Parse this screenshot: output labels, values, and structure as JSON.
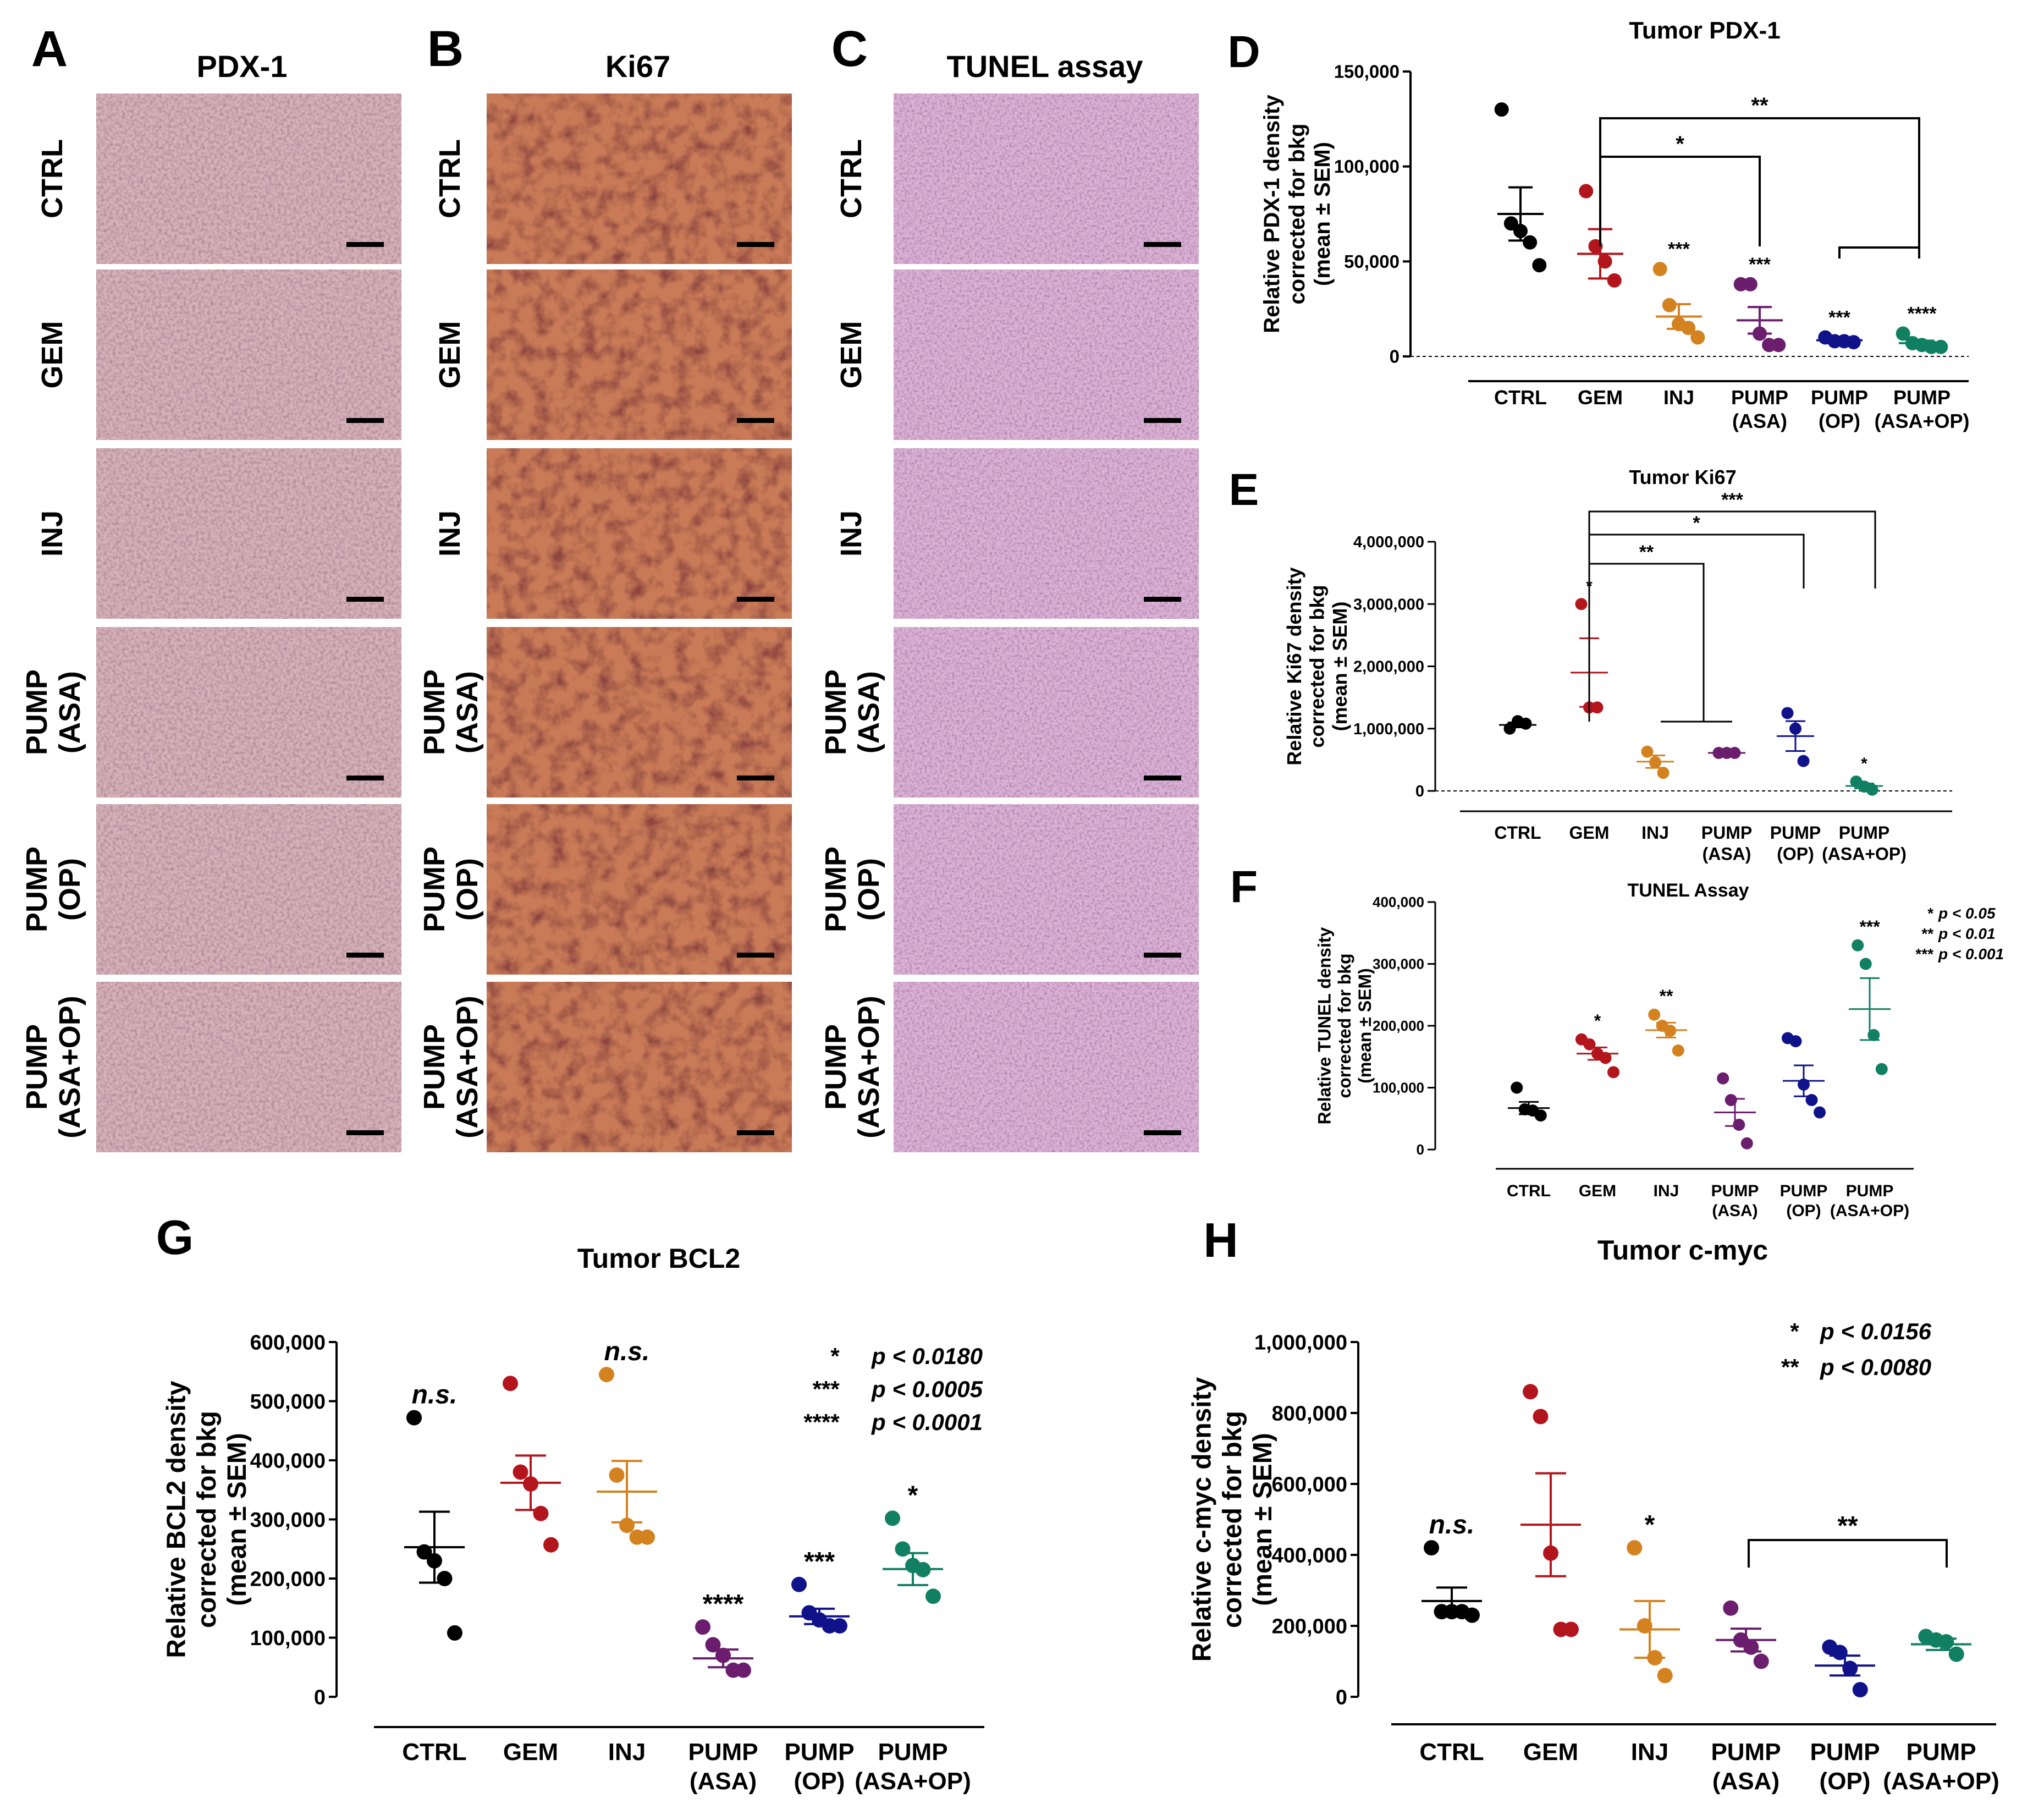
{
  "colors": {
    "CTRL": "#000000",
    "GEM": "#b3151d",
    "INJ": "#d4821f",
    "PUMP (ASA)": "#6b1d6e",
    "PUMP (OP)": "#10128a",
    "PUMP (ASA+OP)": "#118062",
    "tissue_pdx1": "#d7b3b8",
    "tissue_ki67": "#c97a56",
    "tissue_tunel": "#dbb3d6"
  },
  "micrographs": {
    "columns": [
      {
        "letter": "A",
        "title": "PDX-1"
      },
      {
        "letter": "B",
        "title": "Ki67"
      },
      {
        "letter": "C",
        "title": "TUNEL assay"
      }
    ],
    "rows": [
      {
        "line1": "CTRL",
        "line2": ""
      },
      {
        "line1": "GEM",
        "line2": ""
      },
      {
        "line1": "INJ",
        "line2": ""
      },
      {
        "line1": "PUMP",
        "line2": "(ASA)"
      },
      {
        "line1": "PUMP",
        "line2": "(OP)"
      },
      {
        "line1": "PUMP",
        "line2": "(ASA+OP)"
      }
    ]
  },
  "chart_data": [
    {
      "id": "D",
      "letter": "D",
      "type": "scatter",
      "title": "Tumor PDX-1",
      "ylabel": [
        "Relative PDX-1 density",
        "corrected for bkg",
        "(mean ± SEM)"
      ],
      "ylim": [
        0,
        150000
      ],
      "yticks": [
        0,
        50000,
        100000,
        150000
      ],
      "ytick_labels": [
        "0",
        "50,000",
        "100,000",
        "150,000"
      ],
      "categories": [
        [
          "CTRL"
        ],
        [
          "GEM"
        ],
        [
          "INJ"
        ],
        [
          "PUMP",
          "(ASA)"
        ],
        [
          "PUMP",
          "(OP)"
        ],
        [
          "PUMP",
          "(ASA+OP)"
        ]
      ],
      "series": [
        {
          "name": "CTRL",
          "points": [
            130000,
            70000,
            66000,
            60000,
            48000
          ],
          "mean": 75000,
          "sem": 14000
        },
        {
          "name": "GEM",
          "points": [
            87000,
            58000,
            50000,
            40000
          ],
          "mean": 54000,
          "sem": 13000
        },
        {
          "name": "INJ",
          "points": [
            46000,
            27000,
            17000,
            15000,
            10000
          ],
          "mean": 21000,
          "sem": 6500
        },
        {
          "name": "PUMP (ASA)",
          "points": [
            38000,
            38000,
            12000,
            6000,
            6000
          ],
          "mean": 19000,
          "sem": 7000
        },
        {
          "name": "PUMP (OP)",
          "points": [
            10000,
            8000,
            8000,
            7500
          ],
          "mean": 8500,
          "sem": 1000
        },
        {
          "name": "PUMP (ASA+OP)",
          "points": [
            12000,
            7000,
            6000,
            5000,
            5000
          ],
          "mean": 7000,
          "sem": 1300
        }
      ],
      "point_stars": [
        "",
        "",
        "***",
        "***",
        "***",
        "****"
      ],
      "brackets": [
        {
          "x1": 1,
          "x2": 5,
          "label": "**"
        },
        {
          "x1": 1,
          "x2": 3,
          "label": "*"
        },
        {
          "x1": 4,
          "x2": 5,
          "label": ""
        }
      ],
      "legend": []
    },
    {
      "id": "E",
      "letter": "E",
      "type": "scatter",
      "title": "Tumor Ki67",
      "ylabel": [
        "Relative Ki67 density",
        "corrected for bkg",
        "(mean ± SEM)"
      ],
      "ylim": [
        0,
        4000000
      ],
      "yticks": [
        0,
        1000000,
        2000000,
        3000000,
        4000000
      ],
      "ytick_labels": [
        "0",
        "1,000,000",
        "2,000,000",
        "3,000,000",
        "4,000,000"
      ],
      "categories": [
        [
          "CTRL"
        ],
        [
          "GEM"
        ],
        [
          "INJ"
        ],
        [
          "PUMP",
          "(ASA)"
        ],
        [
          "PUMP",
          "(OP)"
        ],
        [
          "PUMP",
          "(ASA+OP)"
        ]
      ],
      "series": [
        {
          "name": "CTRL",
          "points": [
            1000000,
            1120000,
            1080000
          ],
          "mean": 1060000,
          "sem": 40000
        },
        {
          "name": "GEM",
          "points": [
            3000000,
            1340000,
            1340000
          ],
          "mean": 1900000,
          "sem": 550000
        },
        {
          "name": "INJ",
          "points": [
            630000,
            460000,
            290000
          ],
          "mean": 470000,
          "sem": 100000
        },
        {
          "name": "PUMP (ASA)",
          "points": [
            610000,
            610000,
            610000
          ],
          "mean": 610000,
          "sem": 5000
        },
        {
          "name": "PUMP (OP)",
          "points": [
            1250000,
            1000000,
            480000
          ],
          "mean": 880000,
          "sem": 240000
        },
        {
          "name": "PUMP (ASA+OP)",
          "points": [
            150000,
            70000,
            20000
          ],
          "mean": 80000,
          "sem": 40000
        }
      ],
      "point_stars": [
        "",
        "*",
        "",
        "",
        "",
        "*"
      ],
      "brackets": [
        {
          "x1": 1,
          "x2": 5,
          "label": "***"
        },
        {
          "x1": 1,
          "x2": 4,
          "label": "*"
        },
        {
          "x1": 1,
          "x2": 2.6,
          "label": "**"
        },
        {
          "x1": 2,
          "x2": 3,
          "label": ""
        }
      ],
      "legend": []
    },
    {
      "id": "F",
      "letter": "F",
      "type": "scatter",
      "title": "TUNEL Assay",
      "ylabel": [
        "Relative TUNEL density",
        "corrected for bkg",
        "(mean ± SEM)"
      ],
      "ylim": [
        0,
        400000
      ],
      "yticks": [
        0,
        100000,
        200000,
        300000,
        400000
      ],
      "ytick_labels": [
        "0",
        "100,000",
        "200,000",
        "300,000",
        "400,000"
      ],
      "categories": [
        [
          "CTRL"
        ],
        [
          "GEM"
        ],
        [
          "INJ"
        ],
        [
          "PUMP",
          "(ASA)"
        ],
        [
          "PUMP",
          "(OP)"
        ],
        [
          "PUMP",
          "(ASA+OP)"
        ]
      ],
      "series": [
        {
          "name": "CTRL",
          "points": [
            100000,
            65000,
            63000,
            55000
          ],
          "mean": 67000,
          "sem": 10000
        },
        {
          "name": "GEM",
          "points": [
            178000,
            170000,
            155000,
            148000,
            125000
          ],
          "mean": 155000,
          "sem": 10000
        },
        {
          "name": "INJ",
          "points": [
            218000,
            200000,
            192000,
            160000
          ],
          "mean": 193000,
          "sem": 12000
        },
        {
          "name": "PUMP (ASA)",
          "points": [
            115000,
            80000,
            40000,
            10000
          ],
          "mean": 60000,
          "sem": 22000
        },
        {
          "name": "PUMP (OP)",
          "points": [
            180000,
            175000,
            105000,
            80000,
            60000
          ],
          "mean": 111000,
          "sem": 25000
        },
        {
          "name": "PUMP (ASA+OP)",
          "points": [
            330000,
            300000,
            185000,
            130000
          ],
          "mean": 227000,
          "sem": 50000
        }
      ],
      "point_stars": [
        "",
        "*",
        "**",
        "",
        "",
        "***"
      ],
      "brackets": [],
      "legend": [
        {
          "stars": "*",
          "text": "p < 0.05"
        },
        {
          "stars": "**",
          "text": "p < 0.01"
        },
        {
          "stars": "***",
          "text": "p < 0.001"
        }
      ]
    },
    {
      "id": "G",
      "letter": "G",
      "type": "scatter",
      "title": "Tumor BCL2",
      "ylabel": [
        "Relative BCL2 density",
        "corrected for bkg",
        "(mean ± SEM)"
      ],
      "ylim": [
        0,
        600000
      ],
      "yticks": [
        0,
        100000,
        200000,
        300000,
        400000,
        500000,
        600000
      ],
      "ytick_labels": [
        "0",
        "100,000",
        "200,000",
        "300,000",
        "400,000",
        "500,000",
        "600,000"
      ],
      "categories": [
        [
          "CTRL"
        ],
        [
          "GEM"
        ],
        [
          "INJ"
        ],
        [
          "PUMP",
          "(ASA)"
        ],
        [
          "PUMP",
          "(OP)"
        ],
        [
          "PUMP",
          "(ASA+OP)"
        ]
      ],
      "series": [
        {
          "name": "CTRL",
          "points": [
            472000,
            245000,
            230000,
            200000,
            108000
          ],
          "mean": 253000,
          "sem": 60000
        },
        {
          "name": "GEM",
          "points": [
            530000,
            380000,
            360000,
            310000,
            257000
          ],
          "mean": 362000,
          "sem": 46000
        },
        {
          "name": "INJ",
          "points": [
            545000,
            375000,
            290000,
            270000,
            270000
          ],
          "mean": 347000,
          "sem": 52000
        },
        {
          "name": "PUMP (ASA)",
          "points": [
            118000,
            88000,
            70000,
            45000,
            45000
          ],
          "mean": 65000,
          "sem": 15000
        },
        {
          "name": "PUMP (OP)",
          "points": [
            190000,
            142000,
            130000,
            120000,
            120000
          ],
          "mean": 136000,
          "sem": 13000
        },
        {
          "name": "PUMP (ASA+OP)",
          "points": [
            302000,
            250000,
            222000,
            215000,
            170000
          ],
          "mean": 216000,
          "sem": 27000
        }
      ],
      "point_stars": [
        "n.s.",
        "",
        "n.s.",
        "****",
        "***",
        "*"
      ],
      "brackets": [],
      "legend": [
        {
          "stars": "*",
          "text": "p < 0.0180"
        },
        {
          "stars": "***",
          "text": "p < 0.0005"
        },
        {
          "stars": "****",
          "text": "p < 0.0001"
        }
      ]
    },
    {
      "id": "H",
      "letter": "H",
      "type": "scatter",
      "title": "Tumor c-myc",
      "ylabel": [
        "Relative c-myc density",
        "corrected for bkg",
        "(mean ± SEM)"
      ],
      "ylim": [
        0,
        1000000
      ],
      "yticks": [
        0,
        200000,
        400000,
        600000,
        800000,
        1000000
      ],
      "ytick_labels": [
        "0",
        "200,000",
        "400,000",
        "600,000",
        "800,000",
        "1,000,000"
      ],
      "categories": [
        [
          "CTRL"
        ],
        [
          "GEM"
        ],
        [
          "INJ"
        ],
        [
          "PUMP",
          "(ASA)"
        ],
        [
          "PUMP",
          "(OP)"
        ],
        [
          "PUMP",
          "(ASA+OP)"
        ]
      ],
      "series": [
        {
          "name": "CTRL",
          "points": [
            420000,
            240000,
            240000,
            240000,
            230000
          ],
          "mean": 270000,
          "sem": 38000
        },
        {
          "name": "GEM",
          "points": [
            860000,
            790000,
            405000,
            190000,
            190000
          ],
          "mean": 485000,
          "sem": 145000
        },
        {
          "name": "INJ",
          "points": [
            420000,
            200000,
            110000,
            60000
          ],
          "mean": 190000,
          "sem": 80000
        },
        {
          "name": "PUMP (ASA)",
          "points": [
            250000,
            160000,
            140000,
            100000
          ],
          "mean": 160000,
          "sem": 32000
        },
        {
          "name": "PUMP (OP)",
          "points": [
            140000,
            125000,
            80000,
            20000
          ],
          "mean": 88000,
          "sem": 28000
        },
        {
          "name": "PUMP (ASA+OP)",
          "points": [
            170000,
            160000,
            155000,
            120000
          ],
          "mean": 148000,
          "sem": 16000
        }
      ],
      "point_stars": [
        "n.s.",
        "",
        "*",
        "",
        "",
        ""
      ],
      "brackets": [
        {
          "x1": 3,
          "x2": 5,
          "label": "**"
        }
      ],
      "legend": [
        {
          "stars": "*",
          "text": "p < 0.0156"
        },
        {
          "stars": "**",
          "text": "p < 0.0080"
        }
      ]
    }
  ]
}
